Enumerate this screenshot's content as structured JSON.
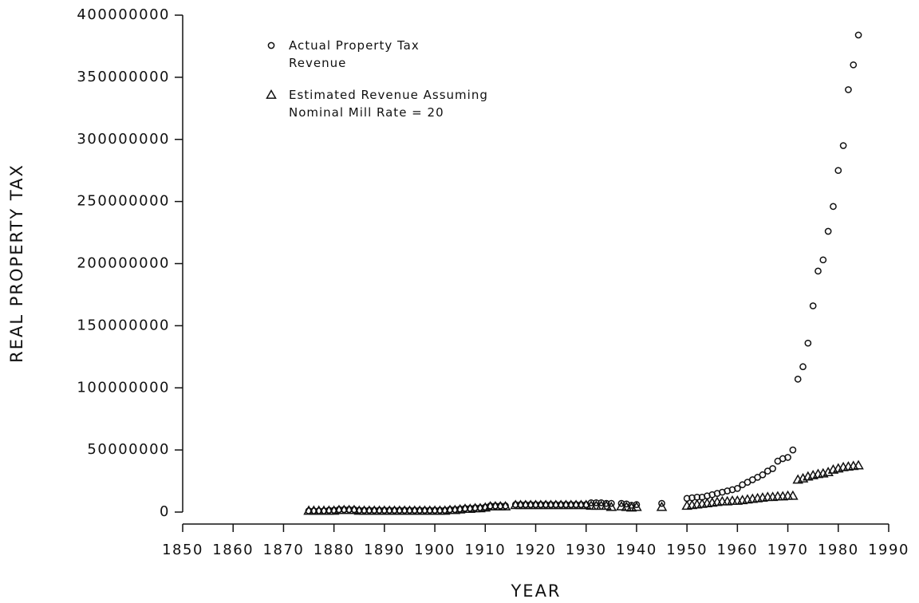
{
  "chart_data": {
    "type": "scatter",
    "x_label": "YEAR",
    "y_label": "REAL PROPERTY TAX",
    "x": [
      1875,
      1876,
      1877,
      1878,
      1879,
      1880,
      1881,
      1882,
      1883,
      1884,
      1885,
      1886,
      1887,
      1888,
      1889,
      1890,
      1891,
      1892,
      1893,
      1894,
      1895,
      1896,
      1897,
      1898,
      1899,
      1900,
      1901,
      1902,
      1903,
      1904,
      1905,
      1906,
      1907,
      1908,
      1909,
      1910,
      1911,
      1912,
      1913,
      1914,
      1916,
      1917,
      1918,
      1919,
      1920,
      1921,
      1922,
      1923,
      1924,
      1925,
      1926,
      1927,
      1928,
      1929,
      1930,
      1931,
      1932,
      1933,
      1934,
      1935,
      1937,
      1938,
      1939,
      1940,
      1945,
      1950,
      1951,
      1952,
      1953,
      1954,
      1955,
      1956,
      1957,
      1958,
      1959,
      1960,
      1961,
      1962,
      1963,
      1964,
      1965,
      1966,
      1967,
      1968,
      1969,
      1970,
      1971,
      1972,
      1973,
      1974,
      1975,
      1976,
      1977,
      1978,
      1979,
      1980,
      1981,
      1982,
      1983,
      1984
    ],
    "series": [
      {
        "name": "Actual Property Tax Revenue",
        "color": "#111111",
        "marker": "circle",
        "values": [
          1000000,
          1000000,
          1000000,
          1000000,
          1500000,
          1500000,
          2000000,
          2000000,
          2000000,
          2000000,
          1500000,
          1500000,
          1500000,
          1500000,
          1500000,
          1500000,
          1500000,
          1500000,
          1500000,
          1500000,
          1500000,
          1500000,
          1500000,
          1500000,
          1500000,
          1500000,
          1500000,
          1500000,
          2000000,
          2000000,
          2500000,
          3000000,
          3000000,
          3500000,
          3500000,
          4000000,
          5000000,
          5000000,
          5000000,
          5000000,
          6000000,
          6000000,
          6000000,
          6000000,
          6000000,
          6000000,
          6000000,
          6000000,
          6000000,
          6000000,
          6000000,
          6000000,
          6000000,
          6000000,
          6000000,
          7500000,
          7500000,
          7500000,
          7000000,
          7000000,
          7000000,
          6500000,
          5500000,
          6000000,
          7000000,
          11000000,
          11500000,
          12000000,
          12000000,
          13000000,
          14000000,
          15000000,
          16000000,
          17000000,
          18000000,
          19000000,
          22000000,
          24000000,
          26000000,
          28000000,
          30000000,
          33000000,
          35000000,
          41000000,
          43000000,
          44000000,
          50000000,
          107000000,
          117000000,
          136000000,
          166000000,
          194000000,
          203000000,
          226000000,
          246000000,
          275000000,
          295000000,
          340000000,
          360000000,
          384000000
        ]
      },
      {
        "name": "Estimated Revenue Assuming Nominal Mill Rate = 20",
        "color": "#111111",
        "marker": "triangle",
        "values": [
          1000000,
          1000000,
          1000000,
          1000000,
          1000000,
          1000000,
          1500000,
          1500000,
          1500000,
          1500000,
          1000000,
          1000000,
          1000000,
          1000000,
          1000000,
          1000000,
          1000000,
          1000000,
          1000000,
          1000000,
          1000000,
          1000000,
          1000000,
          1000000,
          1000000,
          1000000,
          1000000,
          1000000,
          1500000,
          1500000,
          2000000,
          2500000,
          2500000,
          3000000,
          3000000,
          3500000,
          4500000,
          4500000,
          4500000,
          4500000,
          5500000,
          5500000,
          5500000,
          5500000,
          5500000,
          5500000,
          5500000,
          5500000,
          5500000,
          5500000,
          5500000,
          5500000,
          5500000,
          5500000,
          5500000,
          5000000,
          5000000,
          5000000,
          5000000,
          4000000,
          4500000,
          4000000,
          3500000,
          4000000,
          4000000,
          5000000,
          5500000,
          6000000,
          6500000,
          7000000,
          7500000,
          8000000,
          8500000,
          8500000,
          9000000,
          9000000,
          9500000,
          10000000,
          10500000,
          11000000,
          11500000,
          12000000,
          12000000,
          12500000,
          12500000,
          13000000,
          13000000,
          26000000,
          27000000,
          28500000,
          29500000,
          30500000,
          31000000,
          32000000,
          34000000,
          35000000,
          36000000,
          36500000,
          37000000,
          37500000
        ]
      }
    ],
    "xlim": [
      1850,
      1990
    ],
    "xticks": [
      1850,
      1860,
      1870,
      1880,
      1890,
      1900,
      1910,
      1920,
      1930,
      1940,
      1950,
      1960,
      1970,
      1980,
      1990
    ],
    "ylim": [
      0,
      400000000
    ],
    "yticks": [
      0,
      50000000,
      100000000,
      150000000,
      200000000,
      250000000,
      300000000,
      350000000,
      400000000
    ],
    "legend": "top-left",
    "grid": false
  }
}
